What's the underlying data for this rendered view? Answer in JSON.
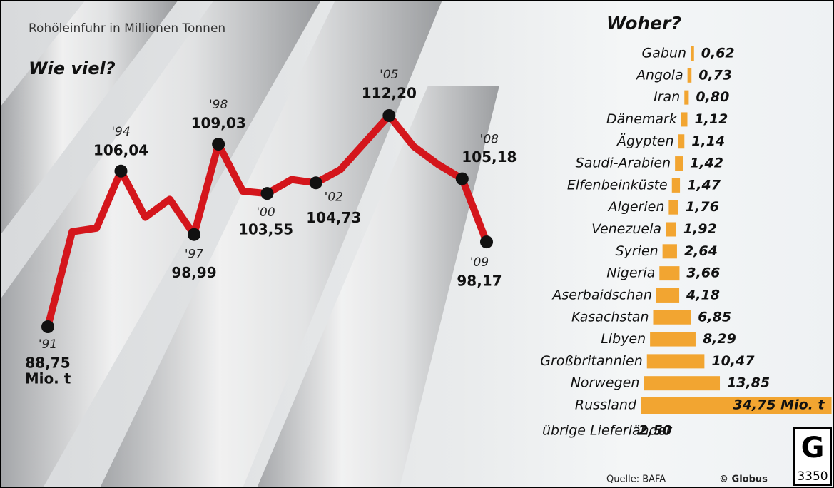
{
  "header": {
    "title": "Rohöleinfuhr in Millionen Tonnen"
  },
  "chart_data": [
    {
      "type": "line",
      "title": "Wie viel?",
      "unit": "Mio. t",
      "color": "#d4161c",
      "categories": [
        "'91",
        null,
        null,
        "'94",
        null,
        null,
        "'97",
        "'98",
        null,
        "'00",
        null,
        "'02",
        null,
        null,
        "'05",
        null,
        null,
        "'08",
        "'09"
      ],
      "values": [
        88.75,
        99.3,
        99.7,
        106.04,
        100.9,
        102.9,
        98.99,
        109.03,
        103.8,
        103.55,
        105.1,
        104.73,
        106.2,
        109.2,
        112.2,
        108.8,
        106.8,
        105.18,
        98.17
      ],
      "value_labels": [
        "88,75",
        null,
        null,
        "106,04",
        null,
        null,
        "98,99",
        "109,03",
        null,
        "103,55",
        null,
        "104,73",
        null,
        null,
        "112,20",
        null,
        null,
        "105,18",
        "98,17"
      ]
    },
    {
      "type": "hbar",
      "title": "Woher?",
      "color": "#f2a531",
      "categories": [
        "Gabun",
        "Angola",
        "Iran",
        "Dänemark",
        "Ägypten",
        "Saudi-Arabien",
        "Elfenbeinküste",
        "Algerien",
        "Venezuela",
        "Syrien",
        "Nigeria",
        "Aserbaidschan",
        "Kasachstan",
        "Libyen",
        "Großbritannien",
        "Norwegen",
        "Russland"
      ],
      "values": [
        0.62,
        0.73,
        0.8,
        1.12,
        1.14,
        1.42,
        1.47,
        1.76,
        1.92,
        2.64,
        3.66,
        4.18,
        6.85,
        8.29,
        10.47,
        13.85,
        34.75
      ],
      "value_labels": [
        "0,62",
        "0,73",
        "0,80",
        "1,12",
        "1,14",
        "1,42",
        "1,47",
        "1,76",
        "1,92",
        "2,64",
        "3,66",
        "4,18",
        "6,85",
        "8,29",
        "10,47",
        "13,85",
        "34,75 Mio. t"
      ],
      "other": {
        "name": "übrige Lieferländer",
        "value": 2.5,
        "value_label": "2,50"
      }
    }
  ],
  "footer": {
    "source": "Quelle: BAFA",
    "copyright": "© Globus",
    "logo": "G",
    "number": "3350"
  }
}
